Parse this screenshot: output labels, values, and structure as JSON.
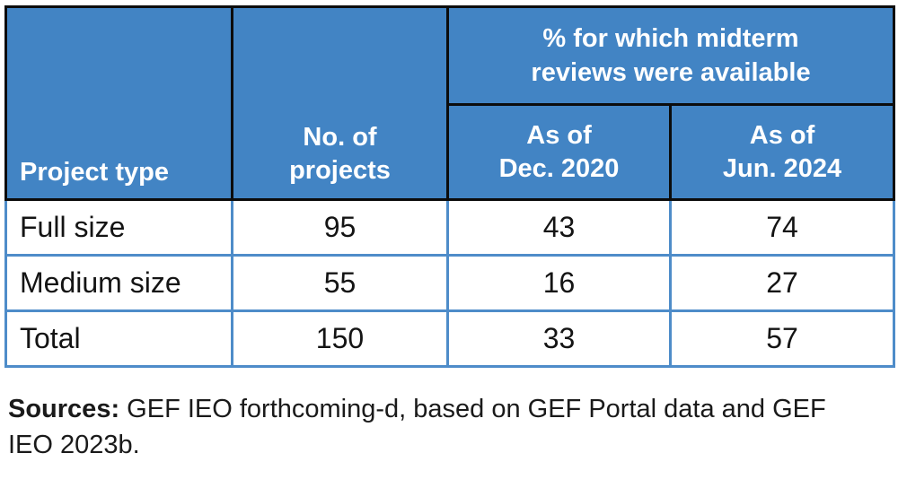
{
  "table": {
    "header": {
      "project_type": "Project type",
      "no_of_projects": {
        "line1": "No. of",
        "line2": "projects"
      },
      "midterm_group": {
        "line1": "% for which midterm",
        "line2": "reviews were available"
      },
      "as_of_dec_2020": {
        "line1": "As of",
        "line2": "Dec. 2020"
      },
      "as_of_jun_2024": {
        "line1": "As of",
        "line2": "Jun. 2024"
      }
    },
    "rows": [
      {
        "label": "Full size",
        "projects": "95",
        "dec2020": "43",
        "jun2024": "74"
      },
      {
        "label": "Medium size",
        "projects": "55",
        "dec2020": "16",
        "jun2024": "27"
      },
      {
        "label": "Total",
        "projects": "150",
        "dec2020": "33",
        "jun2024": "57"
      }
    ]
  },
  "sources": {
    "label": "Sources:",
    "text": " GEF IEO forthcoming-d, based on GEF Portal data and GEF IEO 2023b."
  },
  "colors": {
    "header_fill_blue": "#4284C4",
    "header_border_black": "#0c0c0c",
    "body_border_blue": "#4E8CC9",
    "header_text": "#ffffff",
    "body_text": "#141414"
  },
  "chart_data": {
    "type": "table",
    "title": "% for which midterm reviews were available",
    "columns": [
      "Project type",
      "No. of projects",
      "As of Dec. 2020",
      "As of Jun. 2024"
    ],
    "rows": [
      [
        "Full size",
        95,
        43,
        74
      ],
      [
        "Medium size",
        55,
        16,
        27
      ],
      [
        "Total",
        150,
        33,
        57
      ]
    ]
  }
}
